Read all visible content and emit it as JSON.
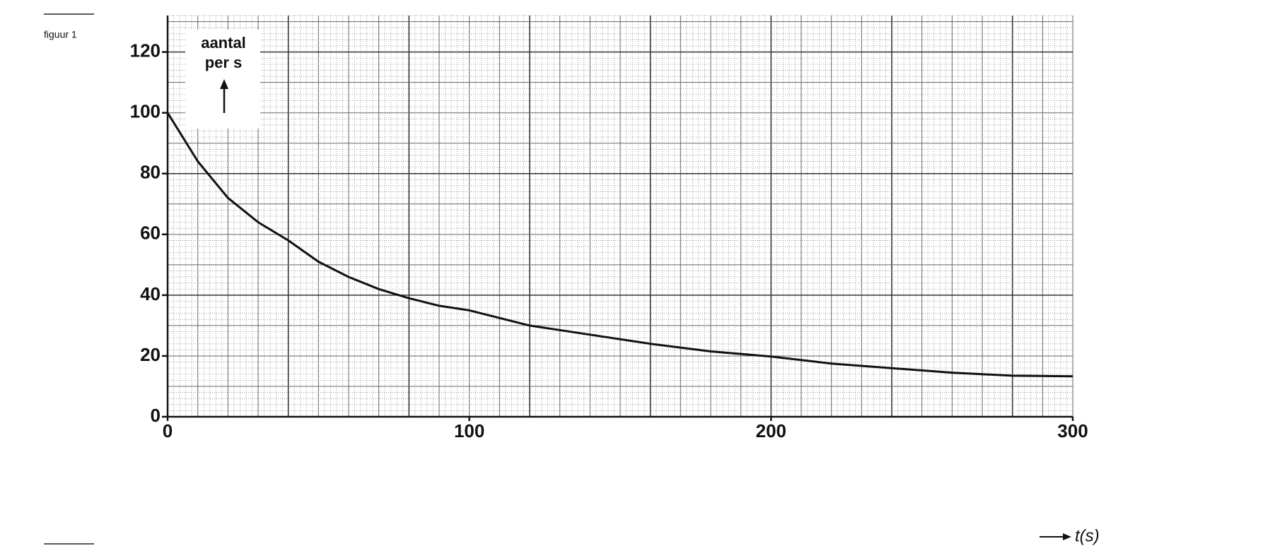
{
  "chart_data": {
    "type": "line",
    "label": "figuur 1",
    "ylabel": [
      "aantal",
      "per s"
    ],
    "xlabel": "t(s)",
    "x": [
      0,
      10,
      20,
      30,
      40,
      50,
      60,
      70,
      80,
      90,
      100,
      120,
      140,
      160,
      180,
      200,
      220,
      240,
      260,
      280,
      300
    ],
    "values": [
      100,
      84,
      72,
      64,
      58,
      51,
      46,
      42,
      39,
      36.5,
      35,
      30,
      27,
      24,
      21.5,
      19.8,
      17.5,
      16,
      14.5,
      13.5,
      13.3
    ],
    "color": "#111111",
    "xlim": [
      0,
      300
    ],
    "ylim": [
      0,
      132
    ],
    "xticks": [
      0,
      100,
      200,
      300
    ],
    "yticks": [
      0,
      20,
      40,
      60,
      80,
      100,
      120
    ],
    "grid": true
  }
}
